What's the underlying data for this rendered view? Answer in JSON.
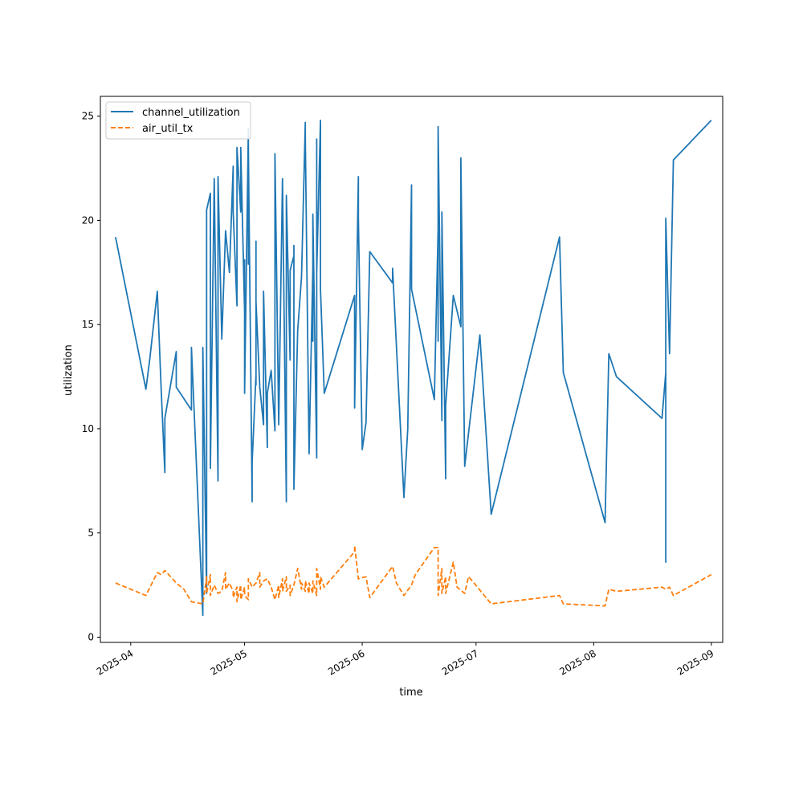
{
  "chart_data": {
    "type": "line",
    "title": "",
    "xlabel": "time",
    "ylabel": "utilization",
    "x_tick_labels": [
      "2025-04",
      "2025-05",
      "2025-06",
      "2025-07",
      "2025-08",
      "2025-09"
    ],
    "x_tick_dates": [
      "2025-04-01",
      "2025-05-01",
      "2025-06-01",
      "2025-07-01",
      "2025-08-01",
      "2025-09-01"
    ],
    "xlim": [
      "2025-03-24",
      "2025-09-04"
    ],
    "y_ticks": [
      0,
      5,
      10,
      15,
      20,
      25
    ],
    "y_tick_labels": [
      "0",
      "5",
      "10",
      "15",
      "20",
      "25"
    ],
    "ylim": [
      -0.25,
      25.95
    ],
    "grid": false,
    "legend_position": "top-left",
    "series": [
      {
        "name": "channel_utilization",
        "color": "#1f77b4",
        "dash": "solid",
        "points": [
          [
            "2025-03-28",
            19.2
          ],
          [
            "2025-04-05",
            11.9
          ],
          [
            "2025-04-06",
            13.3
          ],
          [
            "2025-04-08",
            16.6
          ],
          [
            "2025-04-09",
            12.0
          ],
          [
            "2025-04-10",
            7.9
          ],
          [
            "2025-04-10",
            10.5
          ],
          [
            "2025-04-13",
            13.7
          ],
          [
            "2025-04-13",
            12.0
          ],
          [
            "2025-04-17",
            10.9
          ],
          [
            "2025-04-17",
            13.9
          ],
          [
            "2025-04-20",
            1.05
          ],
          [
            "2025-04-20",
            13.9
          ],
          [
            "2025-04-21",
            2.1
          ],
          [
            "2025-04-21",
            20.5
          ],
          [
            "2025-04-22",
            21.3
          ],
          [
            "2025-04-22",
            8.1
          ],
          [
            "2025-04-23",
            22.0
          ],
          [
            "2025-04-24",
            7.5
          ],
          [
            "2025-04-24",
            22.1
          ],
          [
            "2025-04-25",
            14.3
          ],
          [
            "2025-04-26",
            19.5
          ],
          [
            "2025-04-27",
            17.5
          ],
          [
            "2025-04-28",
            22.6
          ],
          [
            "2025-04-28",
            20.4
          ],
          [
            "2025-04-29",
            15.9
          ],
          [
            "2025-04-29",
            23.5
          ],
          [
            "2025-04-30",
            20.4
          ],
          [
            "2025-04-30",
            23.5
          ],
          [
            "2025-05-01",
            15.6
          ],
          [
            "2025-05-01",
            18.1
          ],
          [
            "2025-05-01",
            11.7
          ],
          [
            "2025-05-02",
            24.4
          ],
          [
            "2025-05-02",
            17.9
          ],
          [
            "2025-05-02",
            23.5
          ],
          [
            "2025-05-03",
            6.5
          ],
          [
            "2025-05-03",
            8.4
          ],
          [
            "2025-05-04",
            12.6
          ],
          [
            "2025-05-04",
            19.0
          ],
          [
            "2025-05-04",
            12.1
          ],
          [
            "2025-05-04",
            16.1
          ],
          [
            "2025-05-05",
            12.0
          ],
          [
            "2025-05-06",
            10.2
          ],
          [
            "2025-05-06",
            16.6
          ],
          [
            "2025-05-07",
            9.1
          ],
          [
            "2025-05-07",
            11.7
          ],
          [
            "2025-05-08",
            12.8
          ],
          [
            "2025-05-09",
            9.9
          ],
          [
            "2025-05-09",
            23.2
          ],
          [
            "2025-05-10",
            10.2
          ],
          [
            "2025-05-11",
            22.0
          ],
          [
            "2025-05-12",
            6.5
          ],
          [
            "2025-05-12",
            21.2
          ],
          [
            "2025-05-13",
            13.3
          ],
          [
            "2025-05-13",
            17.6
          ],
          [
            "2025-05-14",
            18.3
          ],
          [
            "2025-05-14",
            8.9
          ],
          [
            "2025-05-14",
            18.8
          ],
          [
            "2025-05-14",
            7.1
          ],
          [
            "2025-05-15",
            14.7
          ],
          [
            "2025-05-16",
            17.3
          ],
          [
            "2025-05-17",
            24.7
          ],
          [
            "2025-05-17",
            24.0
          ],
          [
            "2025-05-18",
            8.8
          ],
          [
            "2025-05-19",
            17.7
          ],
          [
            "2025-05-19",
            14.2
          ],
          [
            "2025-05-19",
            20.3
          ],
          [
            "2025-05-20",
            8.6
          ],
          [
            "2025-05-20",
            23.9
          ],
          [
            "2025-05-20",
            17.5
          ],
          [
            "2025-05-21",
            24.8
          ],
          [
            "2025-05-21",
            16.7
          ],
          [
            "2025-05-22",
            11.7
          ],
          [
            "2025-05-30",
            16.4
          ],
          [
            "2025-05-30",
            11.0
          ],
          [
            "2025-05-31",
            22.1
          ],
          [
            "2025-05-31",
            20.1
          ],
          [
            "2025-06-01",
            9.0
          ],
          [
            "2025-06-02",
            10.3
          ],
          [
            "2025-06-03",
            18.5
          ],
          [
            "2025-06-09",
            17.0
          ],
          [
            "2025-06-09",
            17.7
          ],
          [
            "2025-06-12",
            6.7
          ],
          [
            "2025-06-13",
            10.0
          ],
          [
            "2025-06-14",
            21.7
          ],
          [
            "2025-06-14",
            16.7
          ],
          [
            "2025-06-20",
            11.4
          ],
          [
            "2025-06-21",
            19.6
          ],
          [
            "2025-06-21",
            14.2
          ],
          [
            "2025-06-21",
            24.5
          ],
          [
            "2025-06-22",
            10.4
          ],
          [
            "2025-06-22",
            20.4
          ],
          [
            "2025-06-23",
            7.6
          ],
          [
            "2025-06-23",
            11.1
          ],
          [
            "2025-06-25",
            16.4
          ],
          [
            "2025-06-27",
            14.9
          ],
          [
            "2025-06-27",
            23.0
          ],
          [
            "2025-06-28",
            8.2
          ],
          [
            "2025-07-02",
            14.5
          ],
          [
            "2025-07-05",
            5.9
          ],
          [
            "2025-07-23",
            19.2
          ],
          [
            "2025-07-24",
            12.7
          ],
          [
            "2025-08-04",
            5.5
          ],
          [
            "2025-08-05",
            13.6
          ],
          [
            "2025-08-07",
            12.5
          ],
          [
            "2025-08-19",
            10.5
          ],
          [
            "2025-08-20",
            12.7
          ],
          [
            "2025-08-20",
            3.6
          ],
          [
            "2025-08-20",
            20.1
          ],
          [
            "2025-08-21",
            13.6
          ],
          [
            "2025-08-22",
            22.9
          ],
          [
            "2025-09-01",
            24.8
          ]
        ]
      },
      {
        "name": "air_util_tx",
        "color": "#ff7f0e",
        "dash": "dashed",
        "points": [
          [
            "2025-03-28",
            2.6
          ],
          [
            "2025-04-05",
            2.0
          ],
          [
            "2025-04-08",
            3.1
          ],
          [
            "2025-04-09",
            3.0
          ],
          [
            "2025-04-10",
            3.2
          ],
          [
            "2025-04-11",
            3.0
          ],
          [
            "2025-04-13",
            2.6
          ],
          [
            "2025-04-15",
            2.3
          ],
          [
            "2025-04-17",
            1.7
          ],
          [
            "2025-04-20",
            1.6
          ],
          [
            "2025-04-21",
            2.9
          ],
          [
            "2025-04-21",
            2.1
          ],
          [
            "2025-04-22",
            3.0
          ],
          [
            "2025-04-22",
            2.0
          ],
          [
            "2025-04-23",
            2.5
          ],
          [
            "2025-04-24",
            2.1
          ],
          [
            "2025-04-25",
            2.2
          ],
          [
            "2025-04-26",
            3.1
          ],
          [
            "2025-04-26",
            2.3
          ],
          [
            "2025-04-27",
            2.6
          ],
          [
            "2025-04-28",
            2.2
          ],
          [
            "2025-04-28",
            1.9
          ],
          [
            "2025-04-29",
            2.4
          ],
          [
            "2025-04-29",
            1.7
          ],
          [
            "2025-04-30",
            2.5
          ],
          [
            "2025-04-30",
            1.8
          ],
          [
            "2025-05-01",
            2.4
          ],
          [
            "2025-05-01",
            2.0
          ],
          [
            "2025-05-02",
            1.8
          ],
          [
            "2025-05-02",
            2.8
          ],
          [
            "2025-05-03",
            2.4
          ],
          [
            "2025-05-04",
            2.6
          ],
          [
            "2025-05-05",
            3.1
          ],
          [
            "2025-05-05",
            2.4
          ],
          [
            "2025-05-06",
            2.7
          ],
          [
            "2025-05-07",
            2.8
          ],
          [
            "2025-05-08",
            2.4
          ],
          [
            "2025-05-09",
            1.8
          ],
          [
            "2025-05-10",
            2.5
          ],
          [
            "2025-05-10",
            1.9
          ],
          [
            "2025-05-11",
            2.8
          ],
          [
            "2025-05-11",
            2.2
          ],
          [
            "2025-05-12",
            2.9
          ],
          [
            "2025-05-12",
            2.2
          ],
          [
            "2025-05-13",
            2.5
          ],
          [
            "2025-05-13",
            2.0
          ],
          [
            "2025-05-14",
            2.5
          ],
          [
            "2025-05-15",
            3.3
          ],
          [
            "2025-05-16",
            2.3
          ],
          [
            "2025-05-16",
            2.6
          ],
          [
            "2025-05-17",
            2.2
          ],
          [
            "2025-05-17",
            2.7
          ],
          [
            "2025-05-18",
            2.1
          ],
          [
            "2025-05-18",
            2.6
          ],
          [
            "2025-05-19",
            2.1
          ],
          [
            "2025-05-19",
            2.7
          ],
          [
            "2025-05-20",
            2.0
          ],
          [
            "2025-05-20",
            3.3
          ],
          [
            "2025-05-21",
            2.3
          ],
          [
            "2025-05-21",
            2.9
          ],
          [
            "2025-05-22",
            2.4
          ],
          [
            "2025-05-30",
            4.1
          ],
          [
            "2025-05-30",
            4.4
          ],
          [
            "2025-05-31",
            2.8
          ],
          [
            "2025-06-02",
            2.9
          ],
          [
            "2025-06-03",
            1.9
          ],
          [
            "2025-06-09",
            3.4
          ],
          [
            "2025-06-10",
            2.6
          ],
          [
            "2025-06-12",
            2.0
          ],
          [
            "2025-06-14",
            2.5
          ],
          [
            "2025-06-15",
            3.0
          ],
          [
            "2025-06-20",
            4.3
          ],
          [
            "2025-06-21",
            4.3
          ],
          [
            "2025-06-21",
            2.0
          ],
          [
            "2025-06-22",
            3.3
          ],
          [
            "2025-06-22",
            2.1
          ],
          [
            "2025-06-23",
            2.9
          ],
          [
            "2025-06-23",
            2.1
          ],
          [
            "2025-06-25",
            3.6
          ],
          [
            "2025-06-26",
            2.4
          ],
          [
            "2025-06-28",
            2.1
          ],
          [
            "2025-06-29",
            2.9
          ],
          [
            "2025-06-30",
            2.7
          ],
          [
            "2025-07-05",
            1.6
          ],
          [
            "2025-07-23",
            2.0
          ],
          [
            "2025-07-24",
            1.6
          ],
          [
            "2025-08-04",
            1.5
          ],
          [
            "2025-08-05",
            2.3
          ],
          [
            "2025-08-07",
            2.2
          ],
          [
            "2025-08-19",
            2.4
          ],
          [
            "2025-08-20",
            2.3
          ],
          [
            "2025-08-21",
            2.4
          ],
          [
            "2025-08-22",
            2.0
          ],
          [
            "2025-09-01",
            3.0
          ]
        ]
      }
    ]
  }
}
